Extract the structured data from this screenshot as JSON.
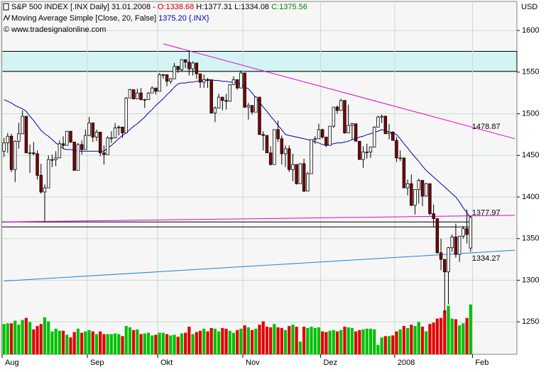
{
  "chart_data": {
    "type": "candlestick",
    "header": {
      "instrument": "S&P 500 INDEX [.INX  Daily] 31.01.2008 -",
      "open": "O:1338.68",
      "high_low": "H:1377.31 L:1334.08",
      "close": "C:1375.56",
      "indicator": "Moving Average Simple [Close, 20, False]",
      "indicator_value": "1375.20 {.INX}",
      "copyright": "© www.tradesignalonline.com"
    },
    "currency": "USD",
    "categories": [
      "Aug",
      null,
      null,
      null,
      null,
      null,
      null,
      null,
      null,
      null,
      null,
      null,
      null,
      null,
      null,
      null,
      null,
      null,
      null,
      null,
      null,
      null,
      null,
      "Sep",
      null,
      null,
      null,
      null,
      null,
      null,
      null,
      null,
      null,
      null,
      null,
      null,
      null,
      null,
      null,
      null,
      null,
      null,
      "Okt",
      null,
      null,
      null,
      null,
      null,
      null,
      null,
      null,
      null,
      null,
      null,
      null,
      null,
      null,
      null,
      null,
      null,
      null,
      null,
      null,
      null,
      null,
      "Nov",
      null,
      null,
      null,
      null,
      null,
      null,
      null,
      null,
      null,
      null,
      null,
      null,
      null,
      null,
      null,
      null,
      null,
      null,
      null,
      null,
      "Dez",
      null,
      null,
      null,
      null,
      null,
      null,
      null,
      null,
      null,
      null,
      null,
      null,
      null,
      null,
      null,
      null,
      null,
      null,
      null,
      "2008",
      null,
      null,
      null,
      null,
      null,
      null,
      null,
      null,
      null,
      null,
      null,
      null,
      null,
      null,
      null,
      null,
      null,
      null,
      null,
      null,
      "Feb",
      null,
      null,
      null,
      null,
      null,
      null,
      null,
      null,
      null,
      null,
      null
    ],
    "ohlc": [
      [
        1455,
        1471,
        1448,
        1465
      ],
      [
        1465,
        1477,
        1453,
        1473
      ],
      [
        1473,
        1476,
        1430,
        1433
      ],
      [
        1433,
        1468,
        1418,
        1467
      ],
      [
        1467,
        1489,
        1458,
        1476
      ],
      [
        1476,
        1504,
        1476,
        1497
      ],
      [
        1497,
        1497,
        1453,
        1453
      ],
      [
        1453,
        1463,
        1429,
        1453
      ],
      [
        1453,
        1466,
        1450,
        1452
      ],
      [
        1452,
        1456,
        1421,
        1426
      ],
      [
        1426,
        1440,
        1404,
        1406
      ],
      [
        1406,
        1415,
        1371,
        1411
      ],
      [
        1411,
        1450,
        1411,
        1445
      ],
      [
        1445,
        1451,
        1436,
        1445
      ],
      [
        1445,
        1455,
        1437,
        1447
      ],
      [
        1447,
        1468,
        1447,
        1464
      ],
      [
        1464,
        1473,
        1458,
        1462
      ],
      [
        1462,
        1479,
        1462,
        1479
      ],
      [
        1479,
        1479,
        1465,
        1466
      ],
      [
        1466,
        1466,
        1432,
        1432
      ],
      [
        1432,
        1465,
        1432,
        1463
      ],
      [
        1463,
        1468,
        1451,
        1457
      ],
      [
        1457,
        1481,
        1457,
        1474
      ],
      [
        1474,
        1496,
        1473,
        1489
      ],
      [
        1489,
        1489,
        1466,
        1472
      ],
      [
        1472,
        1481,
        1467,
        1478
      ],
      [
        1478,
        1478,
        1449,
        1453
      ],
      [
        1453,
        1462,
        1439,
        1451
      ],
      [
        1451,
        1473,
        1451,
        1471
      ],
      [
        1471,
        1479,
        1465,
        1471
      ],
      [
        1471,
        1489,
        1471,
        1483
      ],
      [
        1483,
        1486,
        1474,
        1484
      ],
      [
        1484,
        1484,
        1471,
        1477
      ],
      [
        1477,
        1520,
        1477,
        1519
      ],
      [
        1519,
        1530,
        1519,
        1529
      ],
      [
        1529,
        1529,
        1517,
        1518
      ],
      [
        1518,
        1530,
        1518,
        1525
      ],
      [
        1525,
        1531,
        1516,
        1517
      ],
      [
        1517,
        1518,
        1507,
        1517
      ],
      [
        1517,
        1526,
        1517,
        1525
      ],
      [
        1525,
        1533,
        1525,
        1531
      ],
      [
        1531,
        1531,
        1523,
        1527
      ],
      [
        1527,
        1549,
        1527,
        1547
      ],
      [
        1547,
        1548,
        1542,
        1547
      ],
      [
        1547,
        1547,
        1533,
        1539
      ],
      [
        1539,
        1543,
        1536,
        1542
      ],
      [
        1542,
        1561,
        1542,
        1557
      ],
      [
        1557,
        1557,
        1549,
        1553
      ],
      [
        1553,
        1565,
        1551,
        1565
      ],
      [
        1565,
        1565,
        1555,
        1562
      ],
      [
        1562,
        1576,
        1546,
        1554
      ],
      [
        1554,
        1563,
        1546,
        1561
      ],
      [
        1561,
        1561,
        1542,
        1548
      ],
      [
        1548,
        1548,
        1531,
        1538
      ],
      [
        1538,
        1547,
        1531,
        1541
      ],
      [
        1541,
        1543,
        1531,
        1540
      ],
      [
        1540,
        1540,
        1500,
        1501
      ],
      [
        1501,
        1509,
        1490,
        1507
      ],
      [
        1507,
        1524,
        1507,
        1520
      ],
      [
        1520,
        1520,
        1504,
        1516
      ],
      [
        1516,
        1524,
        1505,
        1515
      ],
      [
        1515,
        1535,
        1515,
        1535
      ],
      [
        1535,
        1545,
        1535,
        1541
      ],
      [
        1541,
        1541,
        1529,
        1531
      ],
      [
        1531,
        1552,
        1531,
        1549
      ],
      [
        1549,
        1549,
        1507,
        1508
      ],
      [
        1508,
        1513,
        1493,
        1510
      ],
      [
        1510,
        1510,
        1499,
        1502
      ],
      [
        1502,
        1521,
        1502,
        1520
      ],
      [
        1520,
        1520,
        1475,
        1475
      ],
      [
        1475,
        1479,
        1456,
        1474
      ],
      [
        1474,
        1474,
        1453,
        1453
      ],
      [
        1453,
        1461,
        1438,
        1439
      ],
      [
        1439,
        1481,
        1439,
        1481
      ],
      [
        1481,
        1492,
        1466,
        1470
      ],
      [
        1470,
        1474,
        1439,
        1452
      ],
      [
        1452,
        1462,
        1436,
        1458
      ],
      [
        1458,
        1462,
        1430,
        1433
      ],
      [
        1433,
        1452,
        1419,
        1439
      ],
      [
        1439,
        1439,
        1415,
        1416
      ],
      [
        1416,
        1440,
        1416,
        1440
      ],
      [
        1440,
        1446,
        1406,
        1407
      ],
      [
        1407,
        1430,
        1407,
        1428
      ],
      [
        1428,
        1469,
        1428,
        1469
      ],
      [
        1469,
        1473,
        1464,
        1470
      ],
      [
        1470,
        1488,
        1470,
        1481
      ],
      [
        1481,
        1482,
        1470,
        1472
      ],
      [
        1472,
        1472,
        1460,
        1462
      ],
      [
        1462,
        1485,
        1462,
        1485
      ],
      [
        1485,
        1508,
        1483,
        1508
      ],
      [
        1508,
        1510,
        1500,
        1504
      ],
      [
        1504,
        1518,
        1504,
        1516
      ],
      [
        1516,
        1516,
        1476,
        1477
      ],
      [
        1477,
        1511,
        1477,
        1486
      ],
      [
        1486,
        1489,
        1469,
        1488
      ],
      [
        1488,
        1488,
        1467,
        1467
      ],
      [
        1467,
        1467,
        1445,
        1445
      ],
      [
        1445,
        1461,
        1435,
        1454
      ],
      [
        1454,
        1464,
        1446,
        1454
      ],
      [
        1454,
        1460,
        1447,
        1460
      ],
      [
        1460,
        1485,
        1460,
        1484
      ],
      [
        1484,
        1498,
        1484,
        1496
      ],
      [
        1496,
        1499,
        1489,
        1497
      ],
      [
        1497,
        1498,
        1476,
        1476
      ],
      [
        1476,
        1488,
        1469,
        1478
      ],
      [
        1478,
        1479,
        1468,
        1468
      ],
      [
        1468,
        1472,
        1442,
        1447
      ],
      [
        1447,
        1456,
        1443,
        1447
      ],
      [
        1447,
        1447,
        1411,
        1411
      ],
      [
        1411,
        1421,
        1402,
        1416
      ],
      [
        1416,
        1427,
        1389,
        1390
      ],
      [
        1390,
        1409,
        1379,
        1409
      ],
      [
        1409,
        1422,
        1392,
        1420
      ],
      [
        1420,
        1420,
        1389,
        1401
      ],
      [
        1401,
        1417,
        1401,
        1416
      ],
      [
        1416,
        1416,
        1378,
        1380
      ],
      [
        1380,
        1391,
        1364,
        1374
      ],
      [
        1374,
        1374,
        1332,
        1333
      ],
      [
        1333,
        1350,
        1312,
        1325
      ],
      [
        1325,
        1325,
        1261,
        1310
      ],
      [
        1310,
        1340,
        1271,
        1339
      ],
      [
        1339,
        1355,
        1334,
        1352
      ],
      [
        1352,
        1368,
        1327,
        1331
      ],
      [
        1331,
        1353,
        1322,
        1353
      ],
      [
        1353,
        1365,
        1350,
        1362
      ],
      [
        1362,
        1385,
        1344,
        1355
      ],
      [
        1338.68,
        1377.31,
        1334.08,
        1375.56
      ],
      null,
      null,
      null,
      null,
      null,
      null,
      null,
      null,
      null,
      null,
      null,
      null
    ],
    "volume": [
      4.5,
      4.6,
      4.6,
      5.0,
      4.4,
      5.1,
      5.4,
      4.8,
      3.7,
      4.2,
      4.5,
      5.5,
      4.9,
      3.4,
      3.8,
      3.5,
      3.5,
      2.9,
      2.5,
      3.3,
      3.8,
      3.2,
      3.4,
      3.6,
      3.4,
      3.0,
      3.4,
      3.0,
      3.0,
      3.0,
      3.1,
      3.0,
      2.7,
      4.2,
      4.0,
      3.6,
      3.7,
      3.0,
      3.1,
      3.2,
      2.8,
      2.9,
      3.2,
      3.2,
      3.0,
      2.8,
      2.9,
      2.6,
      3.1,
      3.2,
      4.1,
      3.0,
      3.3,
      3.5,
      3.8,
      3.4,
      3.9,
      3.8,
      3.4,
      3.9,
      3.8,
      3.5,
      3.2,
      3.6,
      3.8,
      4.3,
      4.0,
      3.6,
      3.8,
      4.4,
      4.9,
      4.1,
      4.0,
      4.5,
      4.0,
      3.9,
      3.6,
      4.2,
      4.4,
      4.1,
      1.9,
      4.1,
      3.9,
      4.1,
      3.9,
      4.0,
      3.4,
      3.3,
      3.5,
      3.6,
      3.4,
      3.6,
      4.1,
      4.0,
      3.9,
      3.4,
      3.6,
      3.7,
      3.8,
      3.8,
      3.7,
      1.4,
      2.5,
      2.7,
      2.7,
      2.8,
      3.4,
      3.7,
      4.2,
      3.9,
      4.4,
      4.2,
      4.8,
      4.1,
      3.4,
      4.5,
      4.7,
      5.3,
      5.4,
      6.5,
      7.2,
      5.3,
      5.2,
      4.3,
      4.6,
      5.4,
      7.4,
      null,
      null,
      null,
      null,
      null,
      null,
      null,
      null,
      null,
      null,
      null,
      null
    ],
    "moving_average": [
      1517,
      1515,
      1513,
      1510,
      1508,
      1506,
      1503,
      1497,
      1492,
      1486,
      1480,
      1476,
      1473,
      1469,
      1465,
      1462,
      1458,
      1457,
      1457,
      1456,
      1455,
      1455,
      1455,
      1455,
      1455,
      1455,
      1455,
      1455,
      1459,
      1462,
      1466,
      1470,
      1474,
      1477,
      1481,
      1485,
      1488,
      1492,
      1496,
      1501,
      1505,
      1510,
      1514,
      1518,
      1523,
      1527,
      1532,
      1536,
      1537,
      1537,
      1538,
      1538,
      1539,
      1539,
      1540,
      1541,
      1541,
      1540,
      1540,
      1539,
      1539,
      1538,
      1538,
      1537,
      1535,
      1532,
      1530,
      1525,
      1519,
      1514,
      1508,
      1503,
      1497,
      1492,
      1486,
      1481,
      1475,
      1474,
      1473,
      1472,
      1471,
      1470,
      1469,
      1468,
      1466,
      1465,
      1463,
      1462,
      1463,
      1464,
      1465,
      1465,
      1466,
      1467,
      1469,
      1470,
      1472,
      1473,
      1475,
      1476,
      1478,
      1479,
      1481,
      1480,
      1478,
      1477,
      1475,
      1470,
      1464,
      1459,
      1453,
      1448,
      1443,
      1437,
      1432,
      1428,
      1424,
      1420,
      1416,
      1412,
      1408,
      1404,
      1400,
      1394,
      1387,
      1381,
      1375.2,
      null,
      null,
      null,
      null,
      null,
      null,
      null,
      null,
      null,
      null,
      null,
      null
    ],
    "ma_color": "#0000b4",
    "up_color": "#ffffff",
    "down_color": "#800000",
    "volume_up_color": "#00c000",
    "volume_down_color": "#e00000",
    "ylim": [
      1211,
      1635
    ],
    "yticks": [
      1250,
      1300,
      1350,
      1400,
      1450,
      1500,
      1550,
      1600
    ],
    "volume_lim": [
      0,
      16
    ],
    "grid": true,
    "band": {
      "range": [
        1551,
        1575
      ],
      "color": "#d4f4f4"
    },
    "levels": [
      1370,
      1364
    ],
    "trend_lines": [
      {
        "label": "1478.87",
        "color": "#e000e0",
        "points": [
          [
            43,
            1584
          ],
          [
            138,
            1470
          ]
        ]
      },
      {
        "label": "1377.97",
        "color": "#e000e0",
        "points": [
          [
            0,
            1370
          ],
          [
            138,
            1378
          ]
        ]
      },
      {
        "label": "1334.27",
        "color": "#2080e0",
        "points": [
          [
            0,
            1299
          ],
          [
            138,
            1336
          ]
        ]
      }
    ]
  }
}
